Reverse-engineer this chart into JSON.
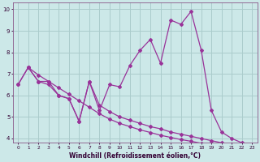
{
  "xlabel": "Windchill (Refroidissement éolien,°C)",
  "bg_color": "#cce8e8",
  "grid_color": "#aacccc",
  "line_color": "#993399",
  "xlim": [
    -0.5,
    23.5
  ],
  "ylim": [
    3.8,
    10.3
  ],
  "yticks": [
    4,
    5,
    6,
    7,
    8,
    9,
    10
  ],
  "xticks": [
    0,
    1,
    2,
    3,
    4,
    5,
    6,
    7,
    8,
    9,
    10,
    11,
    12,
    13,
    14,
    15,
    16,
    17,
    18,
    19,
    20,
    21,
    22,
    23
  ],
  "series1_x": [
    0,
    1,
    2,
    3,
    4,
    5,
    6,
    7,
    8,
    9,
    10,
    11,
    12,
    13,
    14,
    15,
    16,
    17,
    18,
    19,
    20,
    21,
    22,
    23
  ],
  "series1_y": [
    6.5,
    7.3,
    6.65,
    6.65,
    6.0,
    5.85,
    4.8,
    6.65,
    5.3,
    6.5,
    6.4,
    7.4,
    8.1,
    8.6,
    7.5,
    9.5,
    9.3,
    9.9,
    8.1,
    5.3,
    4.3,
    4.0,
    3.8,
    3.5
  ],
  "series2_x": [
    0,
    1,
    2,
    3,
    4,
    5,
    6,
    7,
    8,
    9,
    10,
    11,
    12,
    13,
    14,
    15,
    16,
    17,
    18,
    19,
    20,
    21,
    22,
    23
  ],
  "series2_y": [
    6.5,
    7.3,
    6.65,
    6.5,
    6.0,
    5.85,
    4.8,
    6.65,
    5.55,
    5.25,
    5.0,
    4.85,
    4.7,
    4.55,
    4.45,
    4.3,
    4.2,
    4.1,
    4.0,
    3.9,
    3.8,
    3.75,
    3.65,
    3.5
  ],
  "series3_x": [
    1,
    2,
    3,
    4,
    5,
    6,
    7,
    8,
    9,
    10,
    11,
    12,
    13,
    14,
    15,
    16,
    17,
    18,
    19,
    20,
    21,
    22,
    23
  ],
  "series3_y": [
    7.3,
    6.95,
    6.65,
    6.35,
    6.05,
    5.75,
    5.45,
    5.15,
    4.9,
    4.7,
    4.55,
    4.4,
    4.28,
    4.15,
    4.05,
    3.95,
    3.87,
    3.78,
    3.7,
    3.63,
    3.56,
    3.5,
    3.44
  ]
}
